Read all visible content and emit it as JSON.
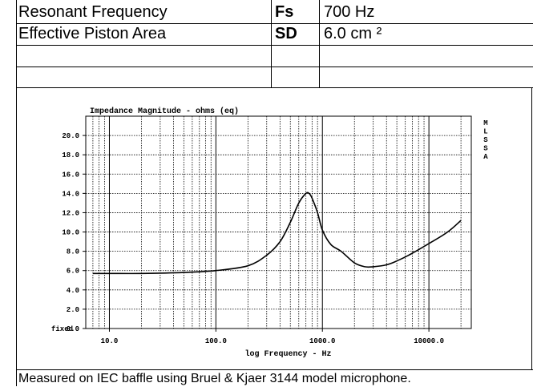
{
  "spec_table": {
    "rows": [
      {
        "param": "Resonant Frequency",
        "symbol": "Fs",
        "value": "700 Hz"
      },
      {
        "param": "Effective Piston Area",
        "symbol": "SD",
        "value": "6.0 cm ²"
      },
      {
        "param": "",
        "symbol": "",
        "value": ""
      },
      {
        "param": "",
        "symbol": "",
        "value": ""
      }
    ]
  },
  "chart_data": {
    "type": "line",
    "title": "Impedance Magnitude - ohms (eq)",
    "xlabel": "log Frequency - Hz",
    "ylabel": "",
    "x_scale": "log",
    "xlim": [
      6,
      25000
    ],
    "ylim": [
      0,
      22
    ],
    "x_ticks": [
      {
        "value": 10,
        "label": "10.0"
      },
      {
        "value": 100,
        "label": "100.0"
      },
      {
        "value": 1000,
        "label": "1000.0"
      },
      {
        "value": 10000,
        "label": "10000.0"
      }
    ],
    "y_ticks": [
      {
        "value": 0,
        "label": "0.0"
      },
      {
        "value": 2,
        "label": "2.0"
      },
      {
        "value": 4,
        "label": "4.0"
      },
      {
        "value": 6,
        "label": "6.0"
      },
      {
        "value": 8,
        "label": "8.0"
      },
      {
        "value": 10,
        "label": "10.0"
      },
      {
        "value": 12,
        "label": "12.0"
      },
      {
        "value": 14,
        "label": "14.0"
      },
      {
        "value": 16,
        "label": "16.0"
      },
      {
        "value": 18,
        "label": "18.0"
      },
      {
        "value": 20,
        "label": "20.0"
      }
    ],
    "y_axis_note": "fixed",
    "side_label": [
      "M",
      "L",
      "S",
      "S",
      "A"
    ],
    "grid": true,
    "series": [
      {
        "x": [
          7,
          10,
          20,
          50,
          100,
          200,
          300,
          400,
          500,
          600,
          700,
          750,
          800,
          900,
          1000,
          1200,
          1500,
          2000,
          2500,
          3000,
          4000,
          5000,
          7000,
          10000,
          15000,
          20000
        ],
        "y": [
          5.7,
          5.7,
          5.7,
          5.8,
          6.0,
          6.5,
          7.6,
          9.0,
          11.0,
          13.0,
          14.0,
          14.0,
          13.5,
          12.0,
          10.2,
          8.7,
          8.0,
          6.8,
          6.4,
          6.4,
          6.6,
          7.0,
          7.8,
          8.8,
          10.0,
          11.2
        ]
      }
    ]
  },
  "footer": {
    "text": "Measured on IEC baffle using Bruel & Kjaer 3144 model microphone."
  }
}
